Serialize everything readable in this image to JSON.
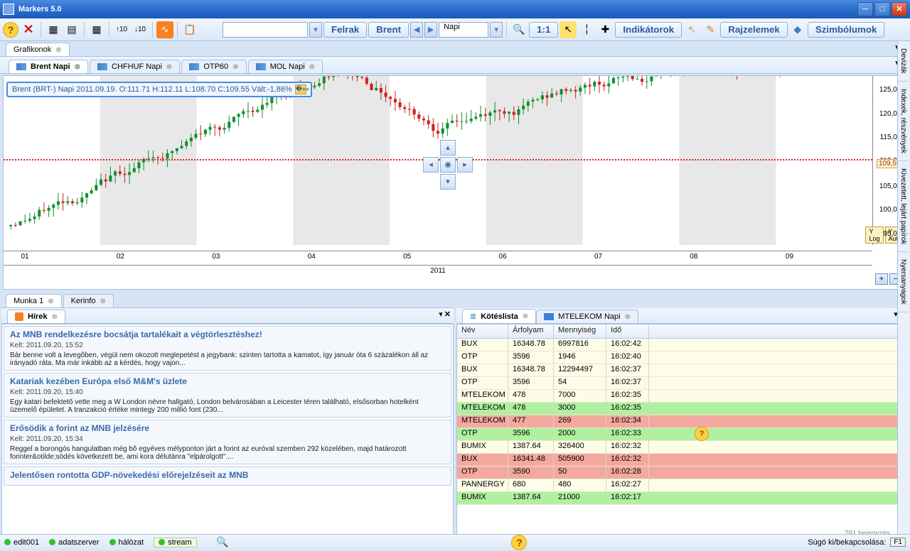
{
  "window": {
    "title": "Markers 5.0"
  },
  "toolbar": {
    "felrak": "Felrak",
    "brent": "Brent",
    "period": "Napi",
    "ratio": "1:1",
    "indikatorok": "Indikátorok",
    "rajzelemek": "Rajzelemek",
    "szimbolumok": "Szimbólumok"
  },
  "main_tab": "Grafikonok",
  "chart_tabs": [
    {
      "label": "Brent Napi",
      "active": true
    },
    {
      "label": "CHFHUF Napi",
      "active": false
    },
    {
      "label": "OTP60",
      "active": false
    },
    {
      "label": "MOL Napi",
      "active": false
    }
  ],
  "chart": {
    "info": "Brent (BRT-)  Napi 2011.09.19. O:111.71 H:112.11 L:108.70 C:109.55 Vált:-1,86%",
    "year": "2011",
    "xticks": [
      "01",
      "02",
      "03",
      "04",
      "05",
      "06",
      "07",
      "08",
      "09"
    ],
    "yticks": [
      {
        "v": "125,000",
        "pct": 6
      },
      {
        "v": "120,000",
        "pct": 20
      },
      {
        "v": "115,000",
        "pct": 34
      },
      {
        "v": "110,000",
        "pct": 48
      },
      {
        "v": "105,000",
        "pct": 63
      },
      {
        "v": "100,000",
        "pct": 77
      },
      {
        "v": "95,000",
        "pct": 91
      }
    ],
    "yline": {
      "label": "109,550",
      "pct": 49
    },
    "ylog": "Y Log",
    "yauto": "Y Auto",
    "colors": {
      "up": "#109030",
      "down": "#d02020",
      "line": "#e02020",
      "bg_alt": "#e8e8e8"
    }
  },
  "bottom_left": {
    "sub_tabs": [
      "Munka 1",
      "Kerinfo"
    ],
    "panel_tab": "Hírek",
    "news": [
      {
        "title": "Az MNB rendelkezésre bocsátja tartalékait a végtörlesztéshez!",
        "date": "Kelt: 2011.09.20, 15:52",
        "body": "Bár benne volt a leveg&#245;ben, végül nem okozott meglepetést a jegybank: szinten tartotta a kamatot, így január óta 6 százalékon áll az irányadó ráta. Ma már inkább az a kérdés, hogy vajon..."
      },
      {
        "title": "Katariak kezében Európa első M&amp;M's üzlete",
        "date": "Kelt: 2011.09.20, 15:40",
        "body": "Egy katari befektető vette meg a W London névre hallgató, London belvárosában a Leicester téren található, elsősorban hotelként üzemelő épületet. A tranzakció értéke mintegy 200 millió font (230..."
      },
      {
        "title": "Erősödik a forint az MNB jelzésére",
        "date": "Kelt: 2011.09.20, 15:34",
        "body": "Reggel a borongós hangulatban még b&otilde; egyéves mélyponton járt a forint az euróval szemben 292 közelében, majd határozott forinter&amp;otilde;södés következett be, ami kora délutánra \"elpárolgott\"...."
      },
      {
        "title": "Jelentősen rontotta GDP-növekedési előrejelzéseit az MNB",
        "date": "",
        "body": ""
      }
    ]
  },
  "bottom_right": {
    "panel_tabs": [
      "Kötéslista",
      "MTELEKOM Napi"
    ],
    "columns": {
      "name": "Név",
      "price": "Árfolyam",
      "qty": "Mennyiség",
      "time": "Idő"
    },
    "row_colors": {
      "default_bg": "#fcfce8",
      "default_border": "#e8e8c8",
      "green": "#b0f0a0",
      "red": "#f4a8a0"
    },
    "rows": [
      {
        "name": "BUX",
        "price": "16348.78",
        "qty": "6997816",
        "time": "16:02:42",
        "color": "default"
      },
      {
        "name": "OTP",
        "price": "3596",
        "qty": "1946",
        "time": "16:02:40",
        "color": "default"
      },
      {
        "name": "BUX",
        "price": "16348.78",
        "qty": "12294497",
        "time": "16:02:37",
        "color": "default"
      },
      {
        "name": "OTP",
        "price": "3596",
        "qty": "54",
        "time": "16:02:37",
        "color": "default"
      },
      {
        "name": "MTELEKOM",
        "price": "478",
        "qty": "7000",
        "time": "16:02:35",
        "color": "default"
      },
      {
        "name": "MTELEKOM",
        "price": "478",
        "qty": "3000",
        "time": "16:02:35",
        "color": "green"
      },
      {
        "name": "MTELEKOM",
        "price": "477",
        "qty": "269",
        "time": "16:02:34",
        "color": "red"
      },
      {
        "name": "OTP",
        "price": "3596",
        "qty": "2000",
        "time": "16:02:33",
        "color": "green"
      },
      {
        "name": "BUMIX",
        "price": "1387.64",
        "qty": "326400",
        "time": "16:02:32",
        "color": "default"
      },
      {
        "name": "BUX",
        "price": "16341.48",
        "qty": "505900",
        "time": "16:02:32",
        "color": "red"
      },
      {
        "name": "OTP",
        "price": "3590",
        "qty": "50",
        "time": "16:02:28",
        "color": "red"
      },
      {
        "name": "PANNERGY",
        "price": "680",
        "qty": "480",
        "time": "16:02:27",
        "color": "default"
      },
      {
        "name": "BUMIX",
        "price": "1387.64",
        "qty": "21000",
        "time": "16:02:17",
        "color": "green"
      }
    ],
    "footer": "791 bejegyzés."
  },
  "status": {
    "items": [
      {
        "label": "edit001",
        "led": "#30c030"
      },
      {
        "label": "adatszerver",
        "led": "#30c030"
      },
      {
        "label": "hálózat",
        "led": "#30c030"
      },
      {
        "label": "stream",
        "led": "#30c030",
        "boxed": true
      }
    ],
    "help_text": "Súgó ki/bekapcsolása:",
    "f1": "F1"
  },
  "side_tabs": [
    "Devizák",
    "Indexek, részvények",
    "Kivezetett, lejárt papírok",
    "Nyersanyagok"
  ]
}
